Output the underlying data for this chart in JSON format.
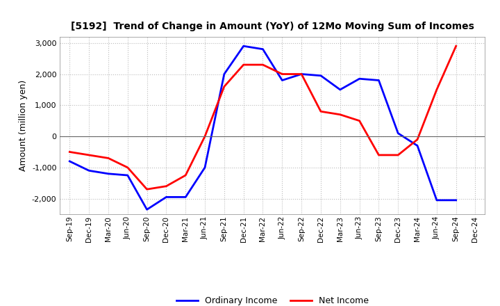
{
  "title": "[5192]  Trend of Change in Amount (YoY) of 12Mo Moving Sum of Incomes",
  "ylabel": "Amount (million yen)",
  "xlabels": [
    "Sep-19",
    "Dec-19",
    "Mar-20",
    "Jun-20",
    "Sep-20",
    "Dec-20",
    "Mar-21",
    "Jun-21",
    "Sep-21",
    "Dec-21",
    "Mar-22",
    "Jun-22",
    "Sep-22",
    "Dec-22",
    "Mar-23",
    "Jun-23",
    "Sep-23",
    "Dec-23",
    "Mar-24",
    "Jun-24",
    "Sep-24",
    "Dec-24"
  ],
  "ordinary_income": [
    -800,
    -1100,
    -1200,
    -1250,
    -2350,
    -1950,
    -1950,
    -1000,
    2000,
    2900,
    2800,
    1800,
    2000,
    1950,
    1500,
    1850,
    1800,
    100,
    -300,
    -2050,
    -2050,
    null
  ],
  "net_income": [
    -500,
    -600,
    -700,
    -1000,
    -1700,
    -1600,
    -1250,
    0,
    1600,
    2300,
    2300,
    2000,
    2000,
    800,
    700,
    500,
    -600,
    -600,
    -100,
    1500,
    2900,
    null
  ],
  "ordinary_income_color": "#0000FF",
  "net_income_color": "#FF0000",
  "ylim": [
    -2500,
    3200
  ],
  "yticks": [
    -2000,
    -1000,
    0,
    1000,
    2000,
    3000
  ],
  "legend_labels": [
    "Ordinary Income",
    "Net Income"
  ],
  "background_color": "#FFFFFF",
  "grid_color": "#BBBBBB",
  "line_width": 2.0
}
